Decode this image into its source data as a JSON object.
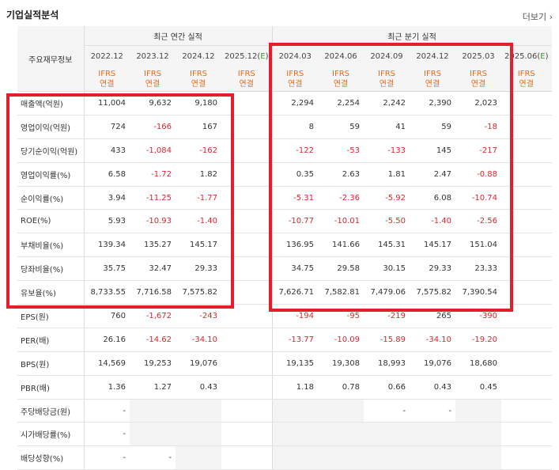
{
  "title": "기업실적분석",
  "more_label": "더보기",
  "header": {
    "label_col": "주요재무정보",
    "annual_group": "최근 연간 실적",
    "quarter_group": "최근 분기 실적",
    "annual_dates": [
      "2022.12",
      "2023.12",
      "2024.12",
      "2025.12(E)"
    ],
    "quarter_dates": [
      "2024.03",
      "2024.06",
      "2024.09",
      "2024.12",
      "2025.03",
      "2025.06(E)"
    ],
    "ifrs_top": "IFRS",
    "ifrs_bottom": "연결"
  },
  "rows": [
    {
      "label": "매출액(억원)",
      "annual": [
        "11,004",
        "9,632",
        "9,180",
        ""
      ],
      "quarter": [
        "2,294",
        "2,254",
        "2,242",
        "2,390",
        "2,023",
        ""
      ]
    },
    {
      "label": "영업이익(억원)",
      "annual": [
        "724",
        "-166",
        "167",
        ""
      ],
      "quarter": [
        "8",
        "59",
        "41",
        "59",
        "-18",
        ""
      ]
    },
    {
      "label": "당기순이익(억원)",
      "annual": [
        "433",
        "-1,084",
        "-162",
        ""
      ],
      "quarter": [
        "-122",
        "-53",
        "-133",
        "145",
        "-217",
        ""
      ]
    },
    {
      "label": "영업이익률(%)",
      "annual": [
        "6.58",
        "-1.72",
        "1.82",
        ""
      ],
      "quarter": [
        "0.35",
        "2.63",
        "1.81",
        "2.47",
        "-0.88",
        ""
      ]
    },
    {
      "label": "순이익률(%)",
      "annual": [
        "3.94",
        "-11.25",
        "-1.77",
        ""
      ],
      "quarter": [
        "-5.31",
        "-2.36",
        "-5.92",
        "6.08",
        "-10.74",
        ""
      ]
    },
    {
      "label": "ROE(%)",
      "annual": [
        "5.93",
        "-10.93",
        "-1.40",
        ""
      ],
      "quarter": [
        "-10.77",
        "-10.01",
        "-5.50",
        "-1.40",
        "-2.56",
        ""
      ]
    },
    {
      "label": "부채비율(%)",
      "annual": [
        "139.34",
        "135.27",
        "145.17",
        ""
      ],
      "quarter": [
        "136.95",
        "141.66",
        "145.31",
        "145.17",
        "151.04",
        ""
      ]
    },
    {
      "label": "당좌비율(%)",
      "annual": [
        "35.75",
        "32.47",
        "29.33",
        ""
      ],
      "quarter": [
        "34.75",
        "29.58",
        "30.15",
        "29.33",
        "23.33",
        ""
      ]
    },
    {
      "label": "유보율(%)",
      "annual": [
        "8,733.55",
        "7,716.58",
        "7,575.82",
        ""
      ],
      "quarter": [
        "7,626.71",
        "7,582.81",
        "7,479.06",
        "7,575.82",
        "7,390.54",
        ""
      ]
    },
    {
      "label": "EPS(원)",
      "annual": [
        "760",
        "-1,672",
        "-243",
        ""
      ],
      "quarter": [
        "-194",
        "-95",
        "-219",
        "265",
        "-390",
        ""
      ]
    },
    {
      "label": "PER(배)",
      "annual": [
        "26.16",
        "-14.62",
        "-34.10",
        ""
      ],
      "quarter": [
        "-13.77",
        "-10.09",
        "-15.89",
        "-34.10",
        "-19.20",
        ""
      ]
    },
    {
      "label": "BPS(원)",
      "annual": [
        "14,569",
        "19,253",
        "19,076",
        ""
      ],
      "quarter": [
        "19,135",
        "19,308",
        "18,993",
        "19,076",
        "18,680",
        ""
      ]
    },
    {
      "label": "PBR(배)",
      "annual": [
        "1.36",
        "1.27",
        "0.43",
        ""
      ],
      "quarter": [
        "1.18",
        "0.78",
        "0.66",
        "0.43",
        "0.45",
        ""
      ]
    },
    {
      "label": "주당배당금(원)",
      "annual": [
        "-",
        "",
        "",
        ""
      ],
      "quarter": [
        "",
        "",
        "-",
        "-",
        "",
        ""
      ]
    },
    {
      "label": "시가배당률(%)",
      "annual": [
        "-",
        "",
        "",
        ""
      ],
      "quarter": [
        "",
        "",
        "",
        "",
        "",
        ""
      ]
    },
    {
      "label": "배당성향(%)",
      "annual": [
        "-",
        "-",
        "",
        ""
      ],
      "quarter": [
        "",
        "",
        "",
        "",
        "",
        ""
      ]
    }
  ],
  "colors": {
    "negative": "#e0242e",
    "ifrs": "#e86a1a",
    "estimate": "#3a9a3a",
    "highlight": "#e41e2d"
  }
}
